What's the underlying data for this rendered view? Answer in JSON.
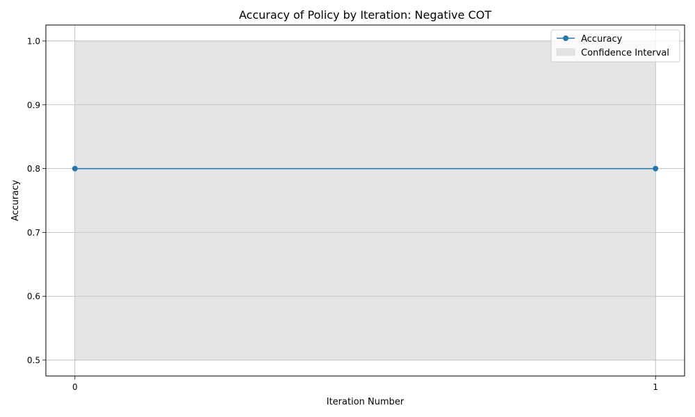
{
  "chart_data": {
    "type": "line",
    "title": "Accuracy of Policy by Iteration: Negative COT",
    "xlabel": "Iteration Number",
    "ylabel": "Accuracy",
    "x": [
      0,
      1
    ],
    "x_ticks": [
      "0",
      "1"
    ],
    "y_ticks": [
      "0.5",
      "0.6",
      "0.7",
      "0.8",
      "0.9",
      "1.0"
    ],
    "xlim": [
      -0.05,
      1.05
    ],
    "ylim": [
      0.475,
      1.025
    ],
    "grid": true,
    "legend_position": "top-right",
    "series": [
      {
        "name": "Accuracy",
        "values": [
          0.8,
          0.8
        ],
        "color": "#1f77b4",
        "marker": "circle"
      }
    ],
    "confidence_interval": {
      "name": "Confidence Interval",
      "lower": [
        0.5,
        0.5
      ],
      "upper": [
        1.0,
        1.0
      ],
      "color": "#cccccc"
    }
  }
}
